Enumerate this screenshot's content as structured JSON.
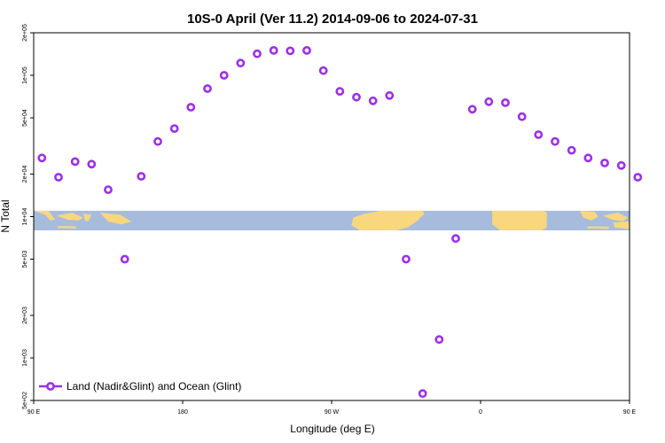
{
  "colors": {
    "marker": "#9b30e8",
    "ocean_band": "#a7bcdc",
    "land": "#f9d77e",
    "frame": "#000000"
  },
  "chart_data": {
    "type": "scatter",
    "title": "10S-0 April (Ver 11.2)   2014-09-06 to 2024-07-31",
    "xlabel": "Longitude (deg E)",
    "ylabel": "N Total",
    "y_scale": "log",
    "xlim": [
      90,
      450
    ],
    "ylim": [
      500,
      200000
    ],
    "x_ticks": [
      {
        "value": 90,
        "label": "90 E"
      },
      {
        "value": 180,
        "label": "180"
      },
      {
        "value": 270,
        "label": "90 W"
      },
      {
        "value": 360,
        "label": "0"
      },
      {
        "value": 450,
        "label": "90 E"
      },
      {
        "value": 540,
        "label": "180"
      }
    ],
    "y_ticks": [
      {
        "value": 500,
        "label": "5e+02"
      },
      {
        "value": 1000,
        "label": "1e+03"
      },
      {
        "value": 2000,
        "label": "2e+03"
      },
      {
        "value": 5000,
        "label": "5e+03"
      },
      {
        "value": 10000,
        "label": "1e+04"
      },
      {
        "value": 20000,
        "label": "2e+04"
      },
      {
        "value": 50000,
        "label": "5e+04"
      },
      {
        "value": 100000,
        "label": "1e+05"
      },
      {
        "value": 200000,
        "label": "2e+05"
      }
    ],
    "legend": {
      "position": "bottom-left"
    },
    "series": [
      {
        "name": "Land (Nadir&Glint) and Ocean (Glint)",
        "points": [
          {
            "x": 95,
            "y": 26000
          },
          {
            "x": 105,
            "y": 19000
          },
          {
            "x": 115,
            "y": 24500
          },
          {
            "x": 125,
            "y": 23500
          },
          {
            "x": 135,
            "y": 15500
          },
          {
            "x": 145,
            "y": 5000
          },
          {
            "x": 155,
            "y": 19300
          },
          {
            "x": 165,
            "y": 34000
          },
          {
            "x": 175,
            "y": 42000
          },
          {
            "x": 185,
            "y": 59500
          },
          {
            "x": 195,
            "y": 80500
          },
          {
            "x": 205,
            "y": 100000
          },
          {
            "x": 215,
            "y": 122000
          },
          {
            "x": 225,
            "y": 142000
          },
          {
            "x": 235,
            "y": 150000
          },
          {
            "x": 245,
            "y": 149000
          },
          {
            "x": 255,
            "y": 150000
          },
          {
            "x": 265,
            "y": 108000
          },
          {
            "x": 275,
            "y": 77000
          },
          {
            "x": 285,
            "y": 70000
          },
          {
            "x": 295,
            "y": 66000
          },
          {
            "x": 305,
            "y": 72000
          },
          {
            "x": 315,
            "y": 5000
          },
          {
            "x": 325,
            "y": 560
          },
          {
            "x": 335,
            "y": 1350
          },
          {
            "x": 345,
            "y": 7000
          },
          {
            "x": 355,
            "y": 57500
          },
          {
            "x": 365,
            "y": 65000
          },
          {
            "x": 375,
            "y": 64000
          },
          {
            "x": 385,
            "y": 51000
          },
          {
            "x": 395,
            "y": 38000
          },
          {
            "x": 405,
            "y": 34000
          },
          {
            "x": 415,
            "y": 29500
          },
          {
            "x": 425,
            "y": 26000
          },
          {
            "x": 435,
            "y": 24000
          },
          {
            "x": 445,
            "y": 23000
          },
          {
            "x": 455,
            "y": 19000
          }
        ]
      }
    ]
  },
  "map_band": {
    "ymin": 8000,
    "ymax": 11000
  }
}
